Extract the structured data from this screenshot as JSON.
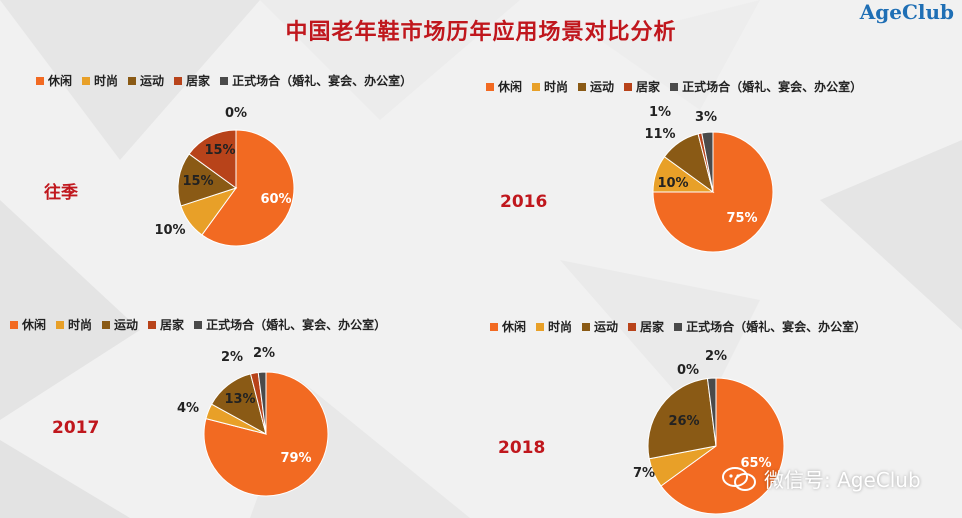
{
  "title": "中国老年鞋市场历年应用场景对比分析",
  "brand": "AgeClub",
  "watermark": "微信号: AgeClub",
  "categories": [
    "休闲",
    "时尚",
    "运动",
    "居家",
    "正式场合（婚礼、宴会、办公室）"
  ],
  "colors": {
    "休闲": "#f26a22",
    "时尚": "#e8a028",
    "运动": "#8a5a15",
    "居家": "#b8431a",
    "正式场合（婚礼、宴会、办公室）": "#4a4a4a"
  },
  "chart_data": [
    {
      "type": "pie",
      "title": "往季",
      "categories": [
        "休闲",
        "时尚",
        "运动",
        "居家",
        "正式场合（婚礼、宴会、办公室）"
      ],
      "values": [
        60,
        10,
        15,
        15,
        0
      ],
      "labels": [
        "60%",
        "10%",
        "15%",
        "15%",
        "0%"
      ]
    },
    {
      "type": "pie",
      "title": "2016",
      "categories": [
        "休闲",
        "时尚",
        "运动",
        "居家",
        "正式场合（婚礼、宴会、办公室）"
      ],
      "values": [
        75,
        10,
        11,
        1,
        3
      ],
      "labels": [
        "75%",
        "10%",
        "11%",
        "1%",
        "3%"
      ]
    },
    {
      "type": "pie",
      "title": "2017",
      "categories": [
        "休闲",
        "时尚",
        "运动",
        "居家",
        "正式场合（婚礼、宴会、办公室）"
      ],
      "values": [
        79,
        4,
        13,
        2,
        2
      ],
      "labels": [
        "79%",
        "4%",
        "13%",
        "2%",
        "2%"
      ]
    },
    {
      "type": "pie",
      "title": "2018",
      "categories": [
        "休闲",
        "时尚",
        "运动",
        "居家",
        "正式场合（婚礼、宴会、办公室）"
      ],
      "values": [
        65,
        7,
        26,
        0,
        2
      ],
      "labels": [
        "65%",
        "7%",
        "26%",
        "0%",
        "2%"
      ]
    }
  ]
}
